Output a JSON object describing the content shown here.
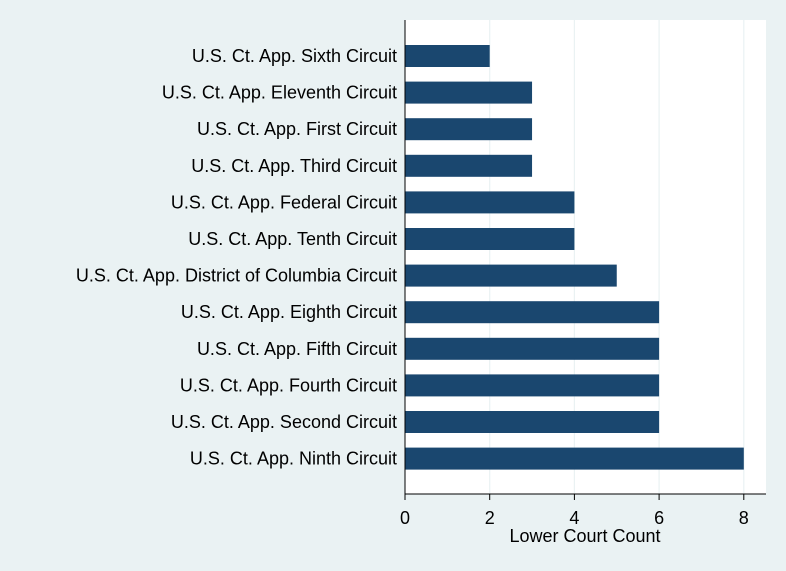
{
  "chart_data": {
    "type": "bar",
    "orientation": "horizontal",
    "title": "",
    "xlabel": "Lower Court Count",
    "ylabel": "",
    "xlim": [
      0,
      8.5
    ],
    "xticks": [
      0,
      2,
      4,
      6,
      8
    ],
    "grid": true,
    "categories": [
      "U.S. Ct. App. Sixth Circuit",
      "U.S. Ct. App. Eleventh Circuit",
      "U.S. Ct. App. First Circuit",
      "U.S. Ct. App. Third Circuit",
      "U.S. Ct. App. Federal Circuit",
      "U.S. Ct. App. Tenth Circuit",
      "U.S. Ct. App. District of Columbia Circuit",
      "U.S. Ct. App. Eighth Circuit",
      "U.S. Ct. App. Fifth Circuit",
      "U.S. Ct. App. Fourth Circuit",
      "U.S. Ct. App. Second Circuit",
      "U.S. Ct. App. Ninth Circuit"
    ],
    "values": [
      2,
      3,
      3,
      3,
      4,
      4,
      5,
      6,
      6,
      6,
      6,
      8
    ],
    "colors": {
      "bar": "#1a476f",
      "plot_bg": "#ffffff",
      "outer_bg": "#eaf2f3",
      "grid": "#eaf2f3",
      "axis": "#000000"
    }
  }
}
